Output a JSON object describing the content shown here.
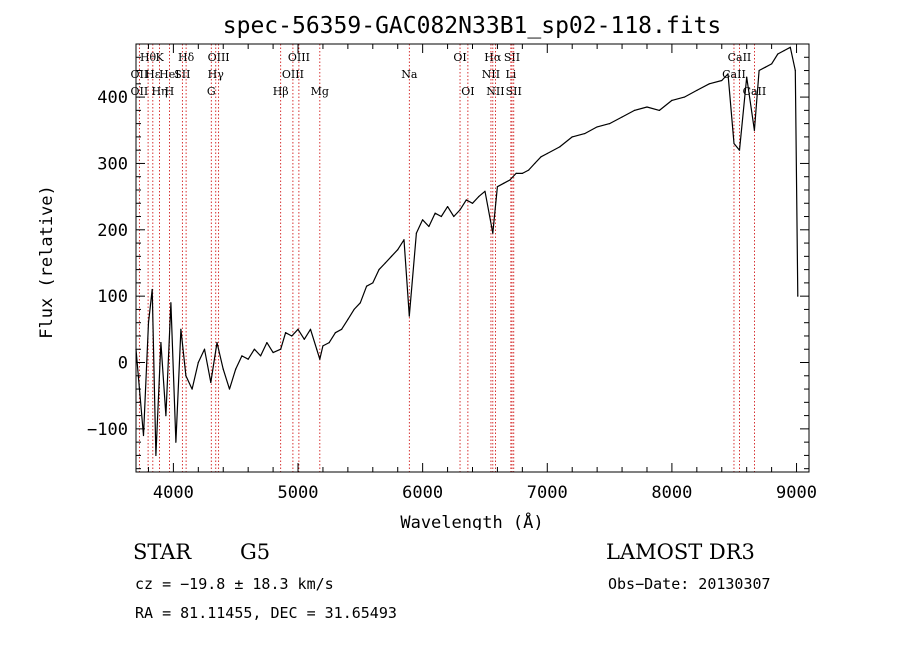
{
  "chart_data": {
    "type": "line",
    "title": "spec-56359-GAC082N33B1_sp02-118.fits",
    "xlabel": "Wavelength (Å)",
    "ylabel": "Flux (relative)",
    "xlim": [
      3700,
      9100
    ],
    "ylim": [
      -165,
      480
    ],
    "xticks": [
      4000,
      5000,
      6000,
      7000,
      8000,
      9000
    ],
    "yticks": [
      -100,
      0,
      100,
      200,
      300,
      400
    ],
    "grid": false,
    "series": [
      {
        "name": "spectrum",
        "x": [
          3700,
          3760,
          3800,
          3830,
          3860,
          3900,
          3940,
          3980,
          4020,
          4060,
          4100,
          4150,
          4200,
          4250,
          4300,
          4350,
          4400,
          4450,
          4500,
          4550,
          4600,
          4650,
          4700,
          4750,
          4800,
          4861,
          4900,
          4950,
          5000,
          5050,
          5100,
          5150,
          5175,
          5200,
          5250,
          5300,
          5350,
          5400,
          5450,
          5500,
          5550,
          5600,
          5650,
          5700,
          5750,
          5800,
          5850,
          5893,
          5950,
          6000,
          6050,
          6100,
          6150,
          6200,
          6250,
          6300,
          6350,
          6400,
          6450,
          6500,
          6563,
          6600,
          6650,
          6700,
          6750,
          6800,
          6850,
          6900,
          6950,
          7000,
          7100,
          7200,
          7300,
          7400,
          7500,
          7600,
          7700,
          7800,
          7900,
          8000,
          8100,
          8200,
          8300,
          8400,
          8450,
          8498,
          8542,
          8600,
          8662,
          8700,
          8750,
          8800,
          8850,
          8900,
          8950,
          8990,
          9010
        ],
        "values": [
          20,
          -110,
          60,
          110,
          -140,
          30,
          -80,
          90,
          -120,
          50,
          -20,
          -40,
          0,
          20,
          -30,
          30,
          -10,
          -40,
          -10,
          10,
          5,
          20,
          10,
          30,
          15,
          20,
          45,
          40,
          50,
          35,
          50,
          20,
          5,
          25,
          30,
          45,
          50,
          65,
          80,
          90,
          115,
          120,
          140,
          150,
          160,
          170,
          185,
          70,
          195,
          215,
          205,
          225,
          220,
          235,
          220,
          230,
          245,
          240,
          250,
          258,
          195,
          265,
          270,
          275,
          285,
          285,
          290,
          300,
          310,
          315,
          325,
          340,
          345,
          355,
          360,
          370,
          380,
          385,
          380,
          395,
          400,
          410,
          420,
          425,
          435,
          330,
          320,
          430,
          350,
          440,
          445,
          450,
          465,
          470,
          475,
          440,
          100
        ]
      }
    ],
    "lines_top": [
      {
        "x": 3797,
        "label": "Hθ"
      },
      {
        "x": 3889,
        "label": "K"
      },
      {
        "x": 4102,
        "label": "Hδ"
      },
      {
        "x": 4363,
        "label": "OIII"
      },
      {
        "x": 5007,
        "label": "OIII"
      },
      {
        "x": 6300,
        "label": "OI"
      },
      {
        "x": 6563,
        "label": "Hα"
      },
      {
        "x": 6717,
        "label": "SII"
      },
      {
        "x": 8542,
        "label": "CaII"
      }
    ],
    "lines_mid": [
      {
        "x": 3727,
        "label": "OII"
      },
      {
        "x": 3835,
        "label": "Hε"
      },
      {
        "x": 3968,
        "label": "HeI"
      },
      {
        "x": 4072,
        "label": "SII"
      },
      {
        "x": 4340,
        "label": "Hγ"
      },
      {
        "x": 4959,
        "label": "OIII"
      },
      {
        "x": 5893,
        "label": "Na"
      },
      {
        "x": 6548,
        "label": "NII"
      },
      {
        "x": 6708,
        "label": "Li"
      },
      {
        "x": 8498,
        "label": "CaII"
      }
    ],
    "lines_low": [
      {
        "x": 3727,
        "label": "OII"
      },
      {
        "x": 3889,
        "label": "Hη"
      },
      {
        "x": 3968,
        "label": "H"
      },
      {
        "x": 4304,
        "label": "G"
      },
      {
        "x": 4861,
        "label": "Hβ"
      },
      {
        "x": 5175,
        "label": "Mg"
      },
      {
        "x": 6363,
        "label": "OI"
      },
      {
        "x": 6584,
        "label": "NII"
      },
      {
        "x": 6731,
        "label": "SII"
      },
      {
        "x": 8662,
        "label": "CaII"
      }
    ],
    "colors": {
      "spectrum": "#000000",
      "line_markers": "#cc0000",
      "axes": "#000000"
    }
  },
  "footer": {
    "classification": "STAR",
    "subclass": "G5",
    "survey": "LAMOST DR3",
    "redshift": "cz = −19.8 ± 18.3 km/s",
    "obs_date": "Obs−Date: 20130307",
    "coords": "RA =  81.11455, DEC =  31.65493"
  }
}
